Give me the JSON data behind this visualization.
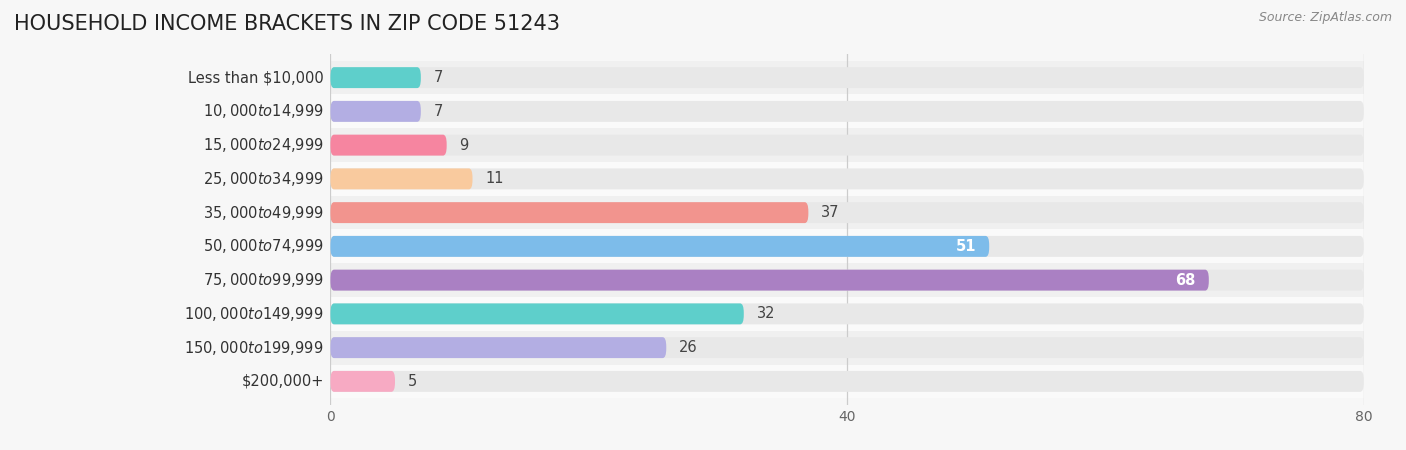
{
  "title": "HOUSEHOLD INCOME BRACKETS IN ZIP CODE 51243",
  "source_text": "Source: ZipAtlas.com",
  "categories": [
    "Less than $10,000",
    "$10,000 to $14,999",
    "$15,000 to $24,999",
    "$25,000 to $34,999",
    "$35,000 to $49,999",
    "$50,000 to $74,999",
    "$75,000 to $99,999",
    "$100,000 to $149,999",
    "$150,000 to $199,999",
    "$200,000+"
  ],
  "values": [
    7,
    7,
    9,
    11,
    37,
    51,
    68,
    32,
    26,
    5
  ],
  "bar_colors": [
    "#5ecfcb",
    "#b3aee3",
    "#f685a0",
    "#f9ca9e",
    "#f2948e",
    "#7dbcea",
    "#aa80c3",
    "#5ecfcb",
    "#b3aee3",
    "#f7aac3"
  ],
  "value_label_inside": [
    false,
    false,
    false,
    false,
    false,
    true,
    true,
    false,
    false,
    false
  ],
  "value_label_colors_inside": [
    "white",
    "white"
  ],
  "xlim": [
    0,
    80
  ],
  "xticks": [
    0,
    40,
    80
  ],
  "background_color": "#f7f7f7",
  "bar_bg_color": "#e8e8e8",
  "row_bg_colors": [
    "#f0f0f0",
    "#fafafa"
  ],
  "title_fontsize": 15,
  "label_fontsize": 10.5,
  "value_fontsize": 10.5
}
